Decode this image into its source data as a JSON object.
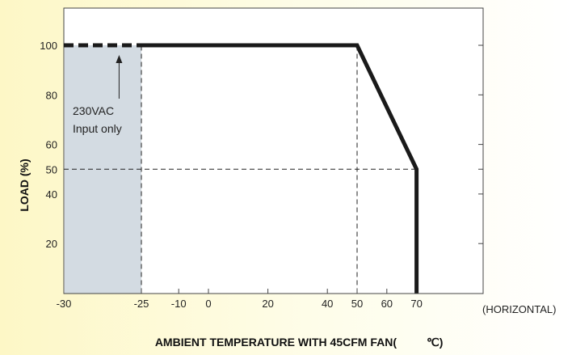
{
  "chart_data": {
    "type": "line",
    "xlabel": "AMBIENT TEMPERATURE WITH 45CFM FAN(",
    "xlabel_unit": "℃)",
    "ylabel": "LOAD (%)",
    "x_note": "(HORIZONTAL)",
    "x_ticks": [
      -30,
      -25,
      -10,
      0,
      20,
      40,
      50,
      60,
      70
    ],
    "y_ticks": [
      20,
      40,
      50,
      60,
      80,
      100
    ],
    "x_tick_labels": [
      "-30",
      "-25",
      "-10",
      "0",
      "20",
      "40",
      "50",
      "60",
      "70"
    ],
    "y_tick_labels": [
      "20",
      "40",
      "50",
      "60",
      "80",
      "100"
    ],
    "xlim": [
      -30,
      75
    ],
    "ylim": [
      0,
      115
    ],
    "series": [
      {
        "x": [
          -25,
          50,
          70,
          70
        ],
        "y": [
          100,
          100,
          50,
          0
        ],
        "style": "solid"
      },
      {
        "x": [
          -30,
          -25
        ],
        "y": [
          100,
          100
        ],
        "style": "dashed"
      }
    ],
    "shaded_region": {
      "x": [
        -30,
        -25
      ],
      "y": [
        0,
        100
      ],
      "color": "#d3dbe2"
    },
    "guide_lines": [
      {
        "x1": -25,
        "y1": 0,
        "x2": -25,
        "y2": 100
      },
      {
        "x1": 50,
        "y1": 0,
        "x2": 50,
        "y2": 100
      },
      {
        "x1": -30,
        "y1": 50,
        "x2": 70,
        "y2": 50
      }
    ],
    "annotation": {
      "lines": [
        "230VAC",
        "Input only"
      ],
      "x": -28,
      "y": 100
    },
    "grid": false,
    "colors": {
      "line": "#1a1a1a",
      "shade": "#d3dbe2",
      "frame": "#444444"
    }
  }
}
